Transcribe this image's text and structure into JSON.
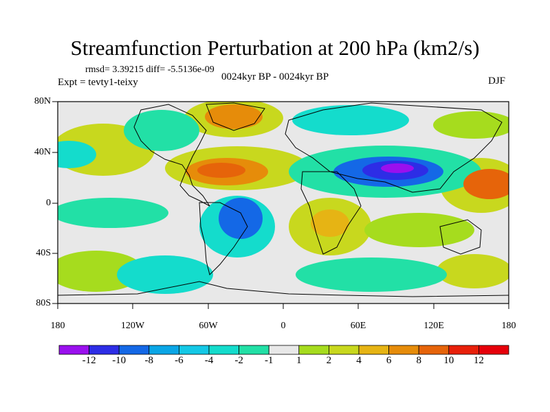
{
  "figure": {
    "title": "Streamfunction Perturbation at 200 hPa (km2/s)",
    "stats": "rmsd= 3.39215 diff= -5.5136e-09",
    "experiment": "Expt = tevty1-teixy",
    "period": "0024kyr BP - 0024kyr BP",
    "season": "DJF"
  },
  "map": {
    "lat_labels": [
      "80N",
      "40N",
      "0",
      "40S",
      "80S"
    ],
    "lon_labels": [
      "180",
      "120W",
      "60W",
      "0",
      "60E",
      "120E",
      "180"
    ]
  },
  "colorbar": {
    "labels": [
      "-12",
      "-10",
      "-8",
      "-6",
      "-4",
      "-2",
      "-1",
      "1",
      "2",
      "4",
      "6",
      "8",
      "10",
      "12"
    ],
    "colors": [
      "#9a10ee",
      "#2d2de6",
      "#1468e6",
      "#0aa6e6",
      "#14c8e6",
      "#14dccc",
      "#22e0a6",
      "#e8e8e8",
      "#a6dc1e",
      "#c8d81e",
      "#e6b414",
      "#e68c0a",
      "#e6640a",
      "#e8200a",
      "#e6000a"
    ]
  },
  "colors": {
    "background": "#e8e8e8",
    "frame": "#000000"
  }
}
